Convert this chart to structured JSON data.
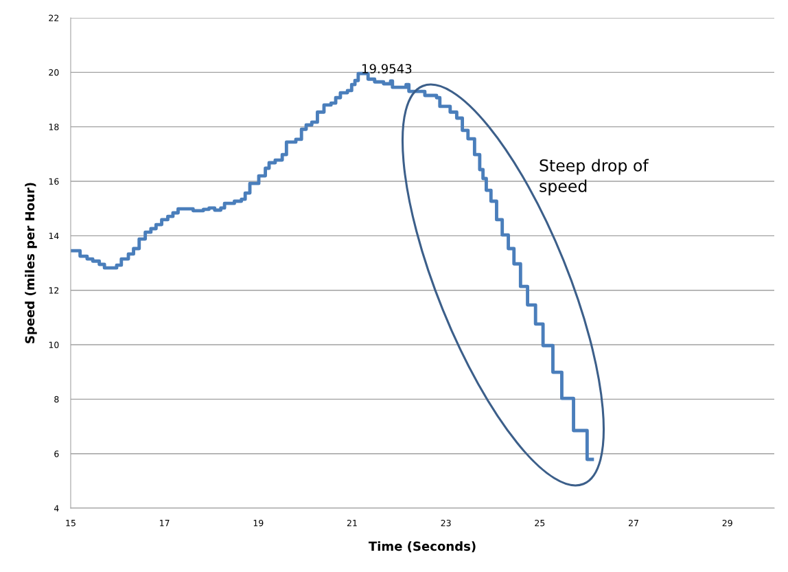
{
  "chart_data": {
    "type": "step",
    "xlabel": "Time (Seconds)",
    "ylabel": "Speed (miles per Hour)",
    "x": [
      15.0,
      15.2,
      15.35,
      15.47,
      15.61,
      15.72,
      15.98,
      16.08,
      16.23,
      16.34,
      16.46,
      16.59,
      16.71,
      16.82,
      16.94,
      17.07,
      17.18,
      17.29,
      17.61,
      17.83,
      17.95,
      18.07,
      18.2,
      18.28,
      18.49,
      18.64,
      18.72,
      18.82,
      19.01,
      19.15,
      19.23,
      19.36,
      19.51,
      19.6,
      19.8,
      19.92,
      20.02,
      20.14,
      20.26,
      20.4,
      20.55,
      20.65,
      20.75,
      20.9,
      20.99,
      21.06,
      21.13,
      21.34,
      21.48,
      21.67,
      21.82,
      21.86,
      22.15,
      22.21,
      22.55,
      22.8,
      22.87,
      23.09,
      23.23,
      23.35,
      23.47,
      23.61,
      23.72,
      23.79,
      23.86,
      23.96,
      24.08,
      24.2,
      24.33,
      24.45,
      24.59,
      24.74,
      24.91,
      25.07,
      25.28,
      25.47,
      25.72,
      26.01,
      26.12
    ],
    "series": [
      {
        "color": "#4a7ebb",
        "values": [
          13.45,
          13.25,
          13.15,
          13.07,
          12.95,
          12.82,
          12.92,
          13.15,
          13.33,
          13.53,
          13.88,
          14.13,
          14.26,
          14.41,
          14.59,
          14.71,
          14.84,
          14.99,
          14.92,
          14.97,
          15.02,
          14.94,
          15.02,
          15.19,
          15.27,
          15.34,
          15.57,
          15.92,
          16.2,
          16.48,
          16.68,
          16.78,
          16.98,
          17.44,
          17.54,
          17.91,
          18.07,
          18.17,
          18.54,
          18.8,
          18.87,
          19.07,
          19.25,
          19.33,
          19.55,
          19.7,
          19.9543,
          19.75,
          19.65,
          19.58,
          19.68,
          19.45,
          19.55,
          19.3,
          19.15,
          19.07,
          18.75,
          18.54,
          18.32,
          17.87,
          17.56,
          16.98,
          16.43,
          16.1,
          15.67,
          15.27,
          14.59,
          14.03,
          13.53,
          12.97,
          12.14,
          11.46,
          10.76,
          9.97,
          8.99,
          8.03,
          6.85,
          5.79,
          5.79
        ]
      }
    ],
    "xlim": [
      15,
      30
    ],
    "xticks": [
      15,
      17,
      19,
      21,
      23,
      25,
      27,
      29
    ],
    "ylim": [
      4,
      22
    ],
    "yticks": [
      4,
      6,
      8,
      10,
      12,
      14,
      16,
      18,
      20,
      22
    ],
    "grid": "y",
    "marker": "none",
    "line_style": "solid",
    "annotations": [
      {
        "text": "19.9543",
        "x": 21.13,
        "y": 19.9543
      },
      "Steep drop of\nspeed"
    ]
  }
}
